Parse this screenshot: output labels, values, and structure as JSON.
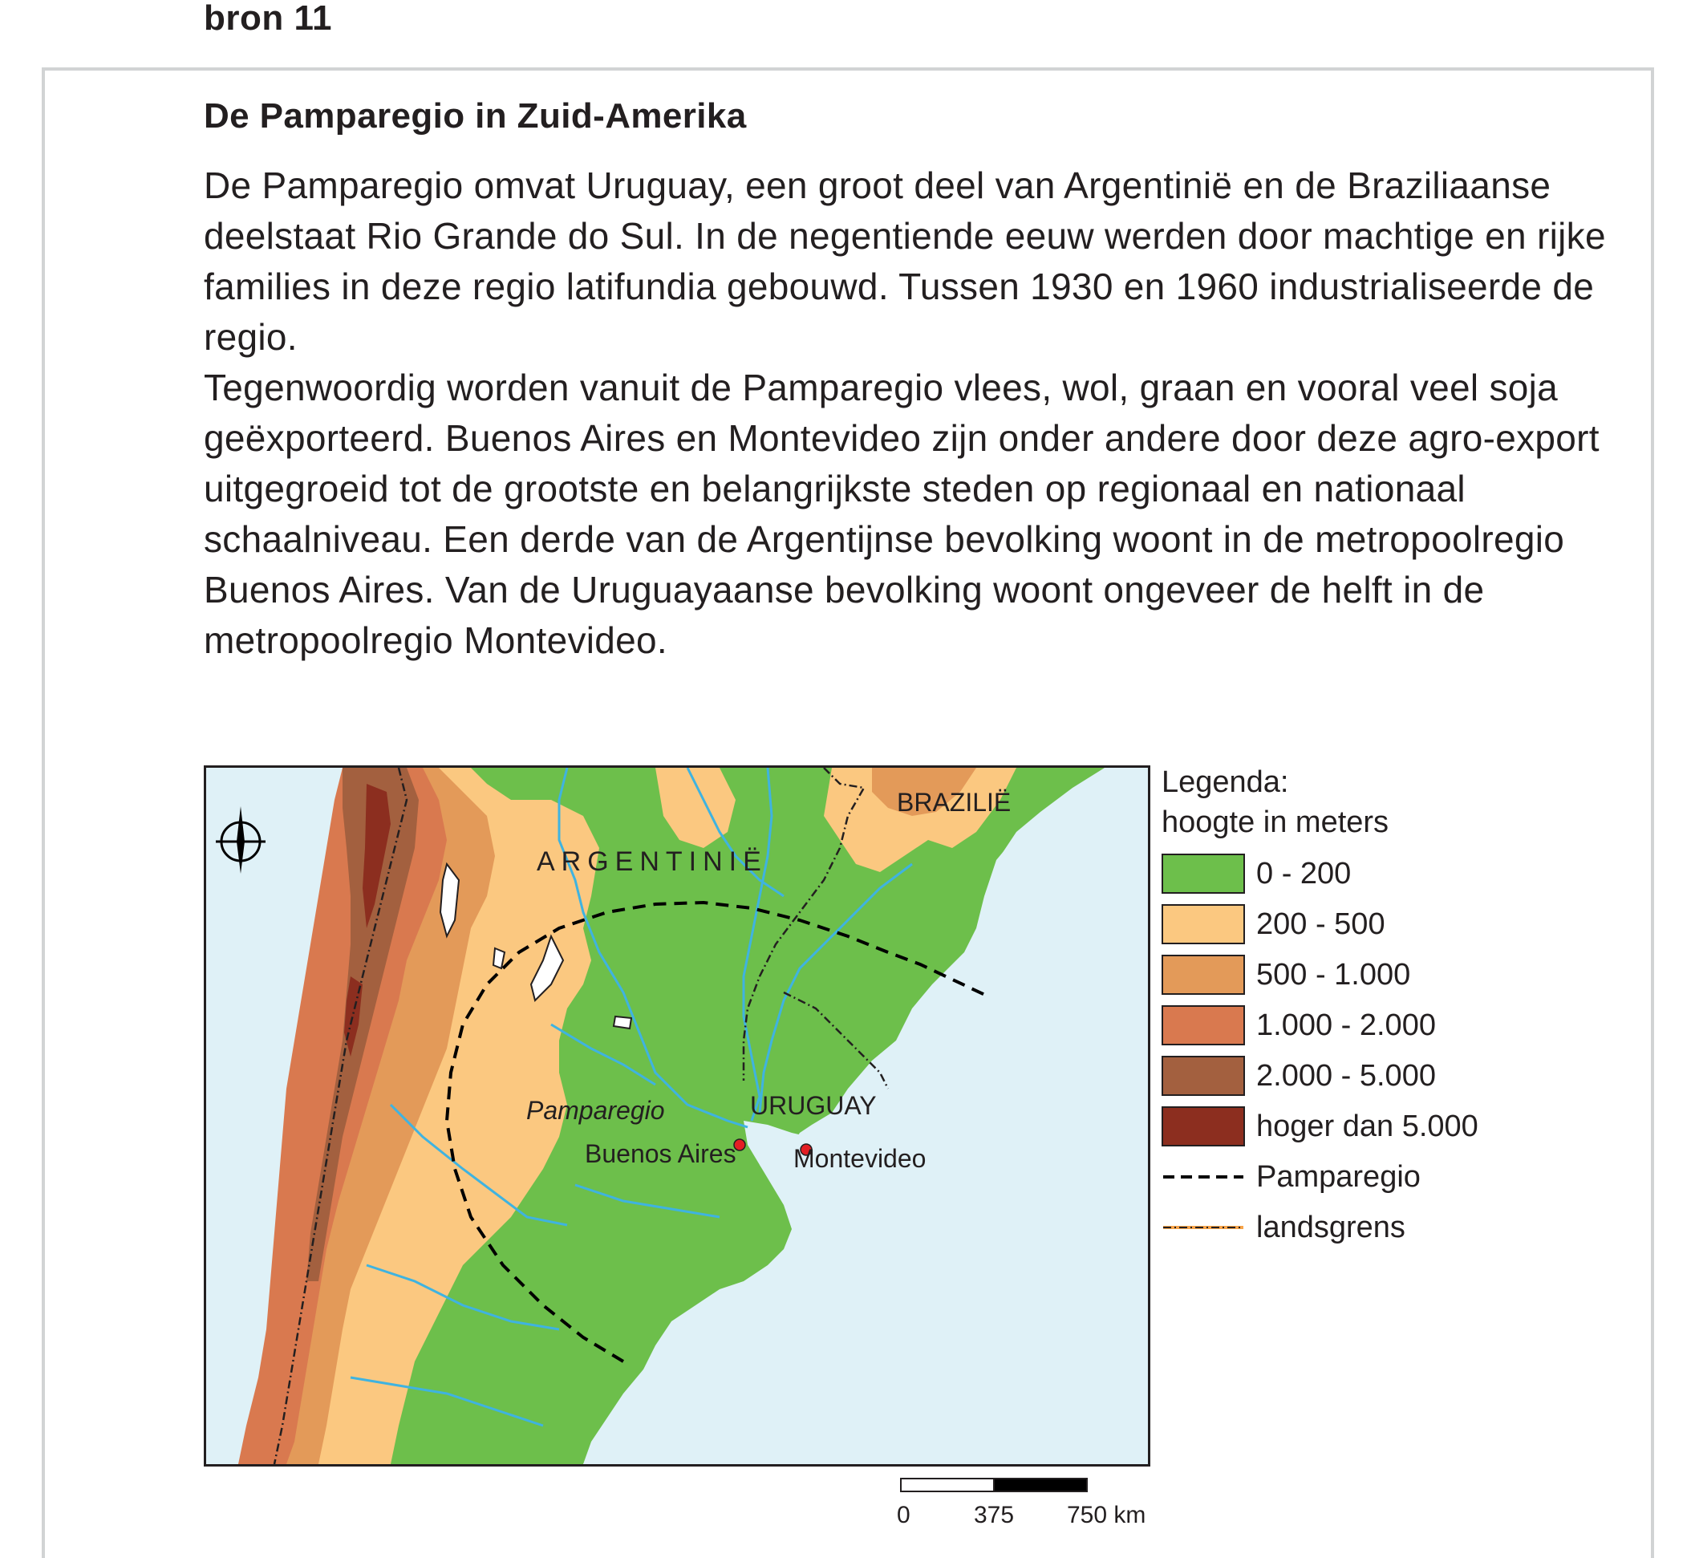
{
  "source_label": "bron 11",
  "title": "De Pamparegio in Zuid-Amerika",
  "paragraphs": [
    "De Pamparegio omvat Uruguay, een groot deel van Argentinië en de Braziliaanse deelstaat Rio Grande do Sul. In de negentiende eeuw werden door machtige en rijke families in deze regio latifundia gebouwd. Tussen 1930 en 1960 industrialiseerde de regio.",
    "Tegenwoordig worden vanuit de Pamparegio vlees, wol, graan en vooral veel soja geëxporteerd. Buenos Aires en Montevideo zijn onder andere door deze agro-export uitgegroeid tot de grootste en belangrijkste steden op regionaal en nationaal schaalniveau. Een derde van de Argentijnse bevolking woont in de metropoolregio Buenos Aires. Van de Uruguayaanse bevolking woont ongeveer de helft in de metropoolregio Montevideo."
  ],
  "map": {
    "labels": {
      "argentina": "ARGENTINIË",
      "brazil": "BRAZILIË",
      "uruguay": "URUGUAY",
      "pampa": "Pamparegio",
      "buenos_aires": "Buenos Aires",
      "montevideo": "Montevideo"
    },
    "colors": {
      "sea": "#dff1f7",
      "river": "#3fb3e0",
      "city": "#e31e24",
      "h0_200": "#6dbf4b",
      "h200_500": "#fbc880",
      "h500_1000": "#e39a59",
      "h1000_2000": "#d9794f",
      "h2000_5000": "#a3603f",
      "h5000_plus": "#8c2e1f"
    }
  },
  "legend": {
    "title": "Legenda:",
    "subtitle": "hoogte in meters",
    "items": [
      {
        "label": "0 - 200",
        "color": "#6dbf4b"
      },
      {
        "label": "200 - 500",
        "color": "#fbc880"
      },
      {
        "label": "500 - 1.000",
        "color": "#e39a59"
      },
      {
        "label": "1.000 - 2.000",
        "color": "#d9794f"
      },
      {
        "label": "2.000 - 5.000",
        "color": "#a3603f"
      },
      {
        "label": "hoger dan 5.000",
        "color": "#8c2e1f"
      }
    ],
    "pampa_line_label": "Pamparegio",
    "border_line_label": "landsgrens"
  },
  "scale": {
    "labels": [
      "0",
      "375",
      "750 km"
    ]
  }
}
